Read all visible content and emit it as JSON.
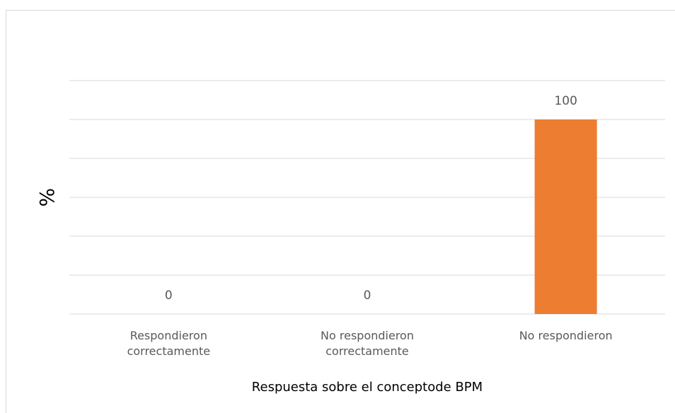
{
  "chart_data": {
    "type": "bar",
    "categories": [
      "Respondieron correctamente",
      "No respondieron correctamente",
      "No respondieron"
    ],
    "values": [
      0,
      0,
      100
    ],
    "color": "#ed7d31",
    "ylabel": "%",
    "xlabel": "Respuesta sobre el conceptode BPM",
    "ylim": [
      0,
      120
    ],
    "yticks": [
      0,
      20,
      40,
      60,
      80,
      100,
      120
    ],
    "grid": true
  }
}
